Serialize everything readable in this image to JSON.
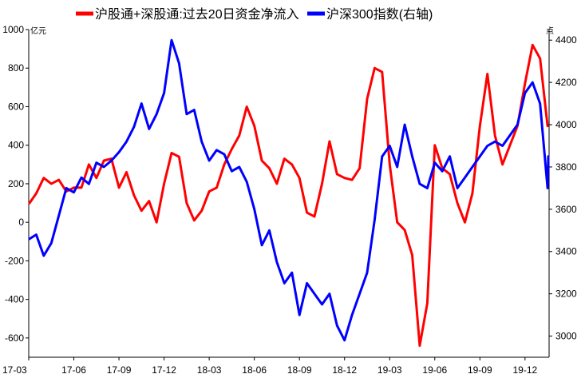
{
  "chart_data": {
    "type": "line",
    "title": "",
    "left_unit": "亿元",
    "right_unit": "点",
    "legend_position": "top",
    "x_ticks": [
      "17-03",
      "17-06",
      "17-09",
      "17-12",
      "18-03",
      "18-06",
      "18-09",
      "18-12",
      "19-03",
      "19-06",
      "19-09",
      "19-12"
    ],
    "y_left": {
      "min": -700,
      "max": 1000,
      "ticks": [
        1000,
        800,
        600,
        400,
        200,
        0,
        -200,
        -400,
        -600
      ]
    },
    "y_right": {
      "min": 2900,
      "max": 4450,
      "ticks": [
        4400,
        4200,
        4000,
        3800,
        3600,
        3400,
        3200,
        3000
      ]
    },
    "grid": false,
    "series": [
      {
        "name": "沪股通+深股通:过去20日资金净流入",
        "axis": "left",
        "color": "#ff0000",
        "points": [
          [
            "17-03",
            100
          ],
          [
            "17-03.5",
            150
          ],
          [
            "17-04",
            230
          ],
          [
            "17-04.5",
            200
          ],
          [
            "17-05",
            220
          ],
          [
            "17-05.5",
            160
          ],
          [
            "17-06",
            180
          ],
          [
            "17-06.5",
            180
          ],
          [
            "17-07",
            300
          ],
          [
            "17-07.5",
            230
          ],
          [
            "17-08",
            320
          ],
          [
            "17-08.5",
            330
          ],
          [
            "17-09",
            180
          ],
          [
            "17-09.5",
            260
          ],
          [
            "17-10",
            140
          ],
          [
            "17-10.5",
            60
          ],
          [
            "17-11",
            110
          ],
          [
            "17-11.5",
            0
          ],
          [
            "17-12",
            200
          ],
          [
            "17-12.5",
            360
          ],
          [
            "18-01",
            340
          ],
          [
            "18-01.5",
            100
          ],
          [
            "18-02",
            10
          ],
          [
            "18-02.5",
            60
          ],
          [
            "18-03",
            160
          ],
          [
            "18-03.5",
            180
          ],
          [
            "18-04",
            300
          ],
          [
            "18-04.5",
            380
          ],
          [
            "18-05",
            450
          ],
          [
            "18-05.5",
            600
          ],
          [
            "18-06",
            500
          ],
          [
            "18-06.5",
            320
          ],
          [
            "18-07",
            280
          ],
          [
            "18-07.5",
            200
          ],
          [
            "18-08",
            330
          ],
          [
            "18-08.5",
            300
          ],
          [
            "18-09",
            230
          ],
          [
            "18-09.5",
            50
          ],
          [
            "18-10",
            30
          ],
          [
            "18-10.5",
            200
          ],
          [
            "18-11",
            420
          ],
          [
            "18-11.5",
            250
          ],
          [
            "18-12",
            230
          ],
          [
            "18-12.5",
            220
          ],
          [
            "19-01",
            280
          ],
          [
            "19-01.5",
            640
          ],
          [
            "19-02",
            800
          ],
          [
            "19-02.5",
            780
          ],
          [
            "19-03",
            300
          ],
          [
            "19-03.5",
            0
          ],
          [
            "19-04",
            -40
          ],
          [
            "19-04.5",
            -170
          ],
          [
            "19-05",
            -640
          ],
          [
            "19-05.5",
            -420
          ],
          [
            "19-06",
            400
          ],
          [
            "19-06.5",
            280
          ],
          [
            "19-07",
            250
          ],
          [
            "19-07.5",
            100
          ],
          [
            "19-08",
            0
          ],
          [
            "19-08.5",
            150
          ],
          [
            "19-09",
            500
          ],
          [
            "19-09.5",
            770
          ],
          [
            "19-10",
            450
          ],
          [
            "19-10.5",
            300
          ],
          [
            "19-11",
            400
          ],
          [
            "19-11.5",
            500
          ],
          [
            "19-12",
            720
          ],
          [
            "19-12.5",
            920
          ],
          [
            "20-01",
            850
          ],
          [
            "20-01.5",
            500
          ]
        ]
      },
      {
        "name": "沪深300指数(右轴)",
        "axis": "right",
        "color": "#0000ff",
        "points": [
          [
            "17-03",
            3460
          ],
          [
            "17-03.5",
            3480
          ],
          [
            "17-04",
            3380
          ],
          [
            "17-04.5",
            3440
          ],
          [
            "17-05",
            3570
          ],
          [
            "17-05.5",
            3700
          ],
          [
            "17-06",
            3680
          ],
          [
            "17-06.5",
            3750
          ],
          [
            "17-07",
            3720
          ],
          [
            "17-07.5",
            3820
          ],
          [
            "17-08",
            3800
          ],
          [
            "17-08.5",
            3830
          ],
          [
            "17-09",
            3870
          ],
          [
            "17-09.5",
            3920
          ],
          [
            "17-10",
            3990
          ],
          [
            "17-10.5",
            4100
          ],
          [
            "17-11",
            3980
          ],
          [
            "17-11.5",
            4050
          ],
          [
            "17-12",
            4150
          ],
          [
            "17-12.5",
            4400
          ],
          [
            "18-01",
            4290
          ],
          [
            "18-01.5",
            4050
          ],
          [
            "18-02",
            4070
          ],
          [
            "18-02.5",
            3920
          ],
          [
            "18-03",
            3830
          ],
          [
            "18-03.5",
            3880
          ],
          [
            "18-04",
            3860
          ],
          [
            "18-04.5",
            3780
          ],
          [
            "18-05",
            3800
          ],
          [
            "18-05.5",
            3730
          ],
          [
            "18-06",
            3600
          ],
          [
            "18-06.5",
            3430
          ],
          [
            "18-07",
            3500
          ],
          [
            "18-07.5",
            3350
          ],
          [
            "18-08",
            3250
          ],
          [
            "18-08.5",
            3300
          ],
          [
            "18-09",
            3100
          ],
          [
            "18-09.5",
            3250
          ],
          [
            "18-10",
            3200
          ],
          [
            "18-10.5",
            3150
          ],
          [
            "18-11",
            3200
          ],
          [
            "18-11.5",
            3050
          ],
          [
            "18-12",
            2980
          ],
          [
            "18-12.5",
            3100
          ],
          [
            "19-01",
            3200
          ],
          [
            "19-01.5",
            3300
          ],
          [
            "19-02",
            3550
          ],
          [
            "19-02.5",
            3850
          ],
          [
            "19-03",
            3900
          ],
          [
            "19-03.5",
            3800
          ],
          [
            "19-04",
            4000
          ],
          [
            "19-04.5",
            3850
          ],
          [
            "19-05",
            3720
          ],
          [
            "19-05.5",
            3700
          ],
          [
            "19-06",
            3820
          ],
          [
            "19-06.5",
            3780
          ],
          [
            "19-07",
            3850
          ],
          [
            "19-07.5",
            3700
          ],
          [
            "19-08",
            3750
          ],
          [
            "19-08.5",
            3800
          ],
          [
            "19-09",
            3850
          ],
          [
            "19-09.5",
            3900
          ],
          [
            "19-10",
            3920
          ],
          [
            "19-10.5",
            3900
          ],
          [
            "19-11",
            3950
          ],
          [
            "19-11.5",
            4000
          ],
          [
            "19-12",
            4150
          ],
          [
            "19-12.5",
            4200
          ],
          [
            "20-01",
            4100
          ],
          [
            "20-01.5",
            3700
          ],
          [
            "20-02",
            3850
          ]
        ]
      }
    ]
  }
}
